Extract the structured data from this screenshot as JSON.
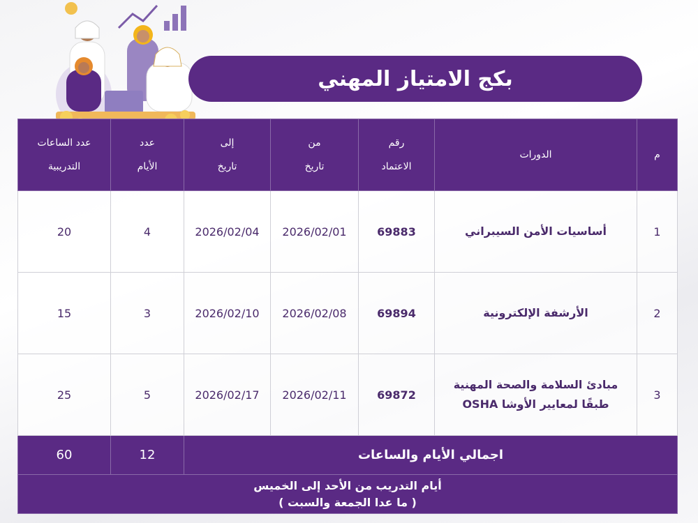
{
  "title": "بكج الامتياز المهني",
  "table": {
    "headers": [
      [
        "م"
      ],
      [
        "الدورات"
      ],
      [
        "رقم",
        "الاعتماد"
      ],
      [
        "من",
        "تاريخ"
      ],
      [
        "إلى",
        "تاريخ"
      ],
      [
        "عدد",
        "الأيام"
      ],
      [
        "عدد الساعات",
        "التدريبية"
      ]
    ],
    "rows": [
      [
        "1",
        [
          "أساسيات الأمن السيبراني"
        ],
        "69883",
        "2026/02/01",
        "2026/02/04",
        "4",
        "20"
      ],
      [
        "2",
        [
          "الأرشفة الإلكترونية"
        ],
        "69894",
        "2026/02/08",
        "2026/02/10",
        "3",
        "15"
      ],
      [
        "3",
        [
          "مبادئ السلامة والصحة المهنية",
          "طبقًا لمعايير الأوشا  OSHA"
        ],
        "69872",
        "2026/02/11",
        "2026/02/17",
        "5",
        "25"
      ]
    ],
    "total": {
      "label": "اجمالي الأيام والساعات",
      "days": "12",
      "hours": "60"
    },
    "note": [
      "أيام التدريب من الأحد إلى الخميس",
      "( ما عدا الجمعة والسبت )"
    ]
  }
}
